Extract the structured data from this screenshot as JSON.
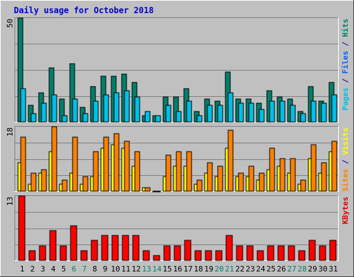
{
  "chart_data": {
    "type": "bar",
    "title": "Daily usage for October 2018",
    "categories": [
      "1",
      "2",
      "3",
      "4",
      "5",
      "6",
      "7",
      "8",
      "9",
      "10",
      "11",
      "12",
      "13",
      "14",
      "15",
      "16",
      "17",
      "18",
      "19",
      "20",
      "21",
      "22",
      "23",
      "24",
      "25",
      "26",
      "27",
      "28",
      "29",
      "30",
      "31"
    ],
    "weekend_days": [
      "6",
      "7",
      "13",
      "14",
      "20",
      "21",
      "27",
      "28"
    ],
    "grid": true,
    "panels": [
      {
        "name": "hits-files-pages",
        "scale_max": 50,
        "scale_label": "50",
        "axis_label_parts": [
          {
            "text": "Pages",
            "color": "#00c0e8"
          },
          {
            "text": " / ",
            "color": "#0000aa"
          },
          {
            "text": "Files",
            "color": "#0060ff"
          },
          {
            "text": " / ",
            "color": "#0000aa"
          },
          {
            "text": "Hits",
            "color": "#00806a"
          }
        ],
        "series": [
          {
            "name": "Hits",
            "color": "#00806a",
            "values": [
              50,
              8,
              14,
              26,
              11,
              28,
              7,
              17,
              22,
              22,
              23,
              19,
              3,
              3,
              12,
              12,
              16,
              5,
              11,
              10,
              24,
              11,
              11,
              9,
              15,
              12,
              11,
              5,
              17,
              10,
              19
            ]
          },
          {
            "name": "Files",
            "color": "#00c0e8",
            "values": [
              16,
              4,
              9,
              13,
              3,
              11,
              4,
              10,
              13,
              14,
              15,
              12,
              5,
              3,
              8,
              5,
              10,
              3,
              8,
              8,
              14,
              9,
              9,
              6,
              10,
              10,
              8,
              4,
              10,
              9,
              13
            ]
          }
        ]
      },
      {
        "name": "visits-sites",
        "scale_max": 18,
        "scale_label": "18",
        "axis_label_parts": [
          {
            "text": "Sites",
            "color": "#ff8000"
          },
          {
            "text": " / ",
            "color": "#0000aa"
          },
          {
            "text": "Visits",
            "color": "#ffff00"
          }
        ],
        "series": [
          {
            "name": "Visits",
            "color": "#ffff00",
            "values": [
              8,
              2,
              5,
              11,
              2,
              5,
              2,
              4,
              12,
              13,
              12,
              7,
              1,
              0,
              4,
              7,
              7,
              2,
              5,
              4,
              12,
              4,
              4,
              3,
              6,
              7,
              5,
              2,
              9,
              5,
              11
            ]
          },
          {
            "name": "Sites",
            "color": "#ff8000",
            "values": [
              15,
              5,
              6,
              18,
              3,
              15,
              4,
              11,
              15,
              16,
              14,
              11,
              1,
              0,
              10,
              11,
              11,
              3,
              8,
              7,
              17,
              5,
              7,
              5,
              12,
              9,
              9,
              3,
              13,
              8,
              14
            ]
          }
        ]
      },
      {
        "name": "kbytes",
        "scale_max": 13,
        "scale_label": "13",
        "axis_label_parts": [
          {
            "text": "KBytes",
            "color": "#e00000"
          }
        ],
        "series": [
          {
            "name": "KBytes",
            "color": "#ff0000",
            "values": [
              13,
              2,
              3,
              6,
              3,
              7,
              2,
              4,
              5,
              5,
              5,
              5,
              2,
              1,
              3,
              3,
              4,
              2,
              2,
              2,
              5,
              3,
              3,
              2,
              3,
              3,
              3,
              2,
              4,
              3,
              4
            ]
          }
        ]
      }
    ]
  }
}
